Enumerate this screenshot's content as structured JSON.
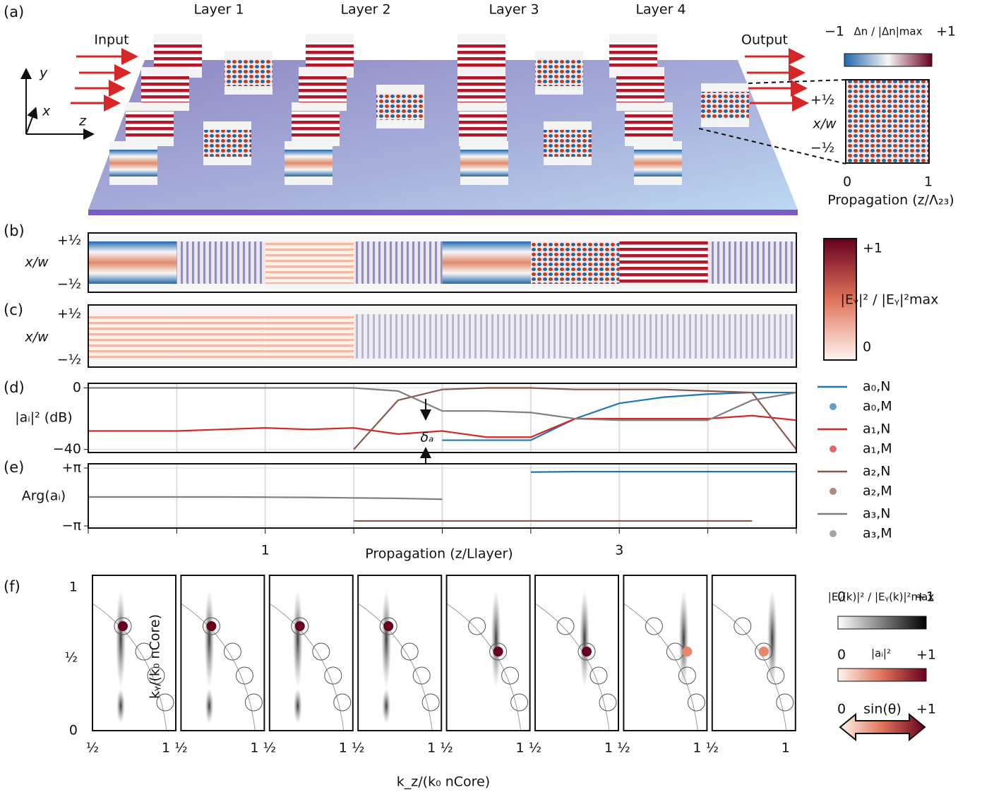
{
  "panel_labels": [
    "(a)",
    "(b)",
    "(c)",
    "(d)",
    "(e)",
    "(f)"
  ],
  "panel_a": {
    "layers": [
      "Layer 1",
      "Layer 2",
      "Layer 3",
      "Layer 4"
    ],
    "input": "Input",
    "output": "Output",
    "axes": [
      "y",
      "x",
      "z"
    ],
    "colorbar": {
      "min": "−1",
      "label": "Δn / |Δn|max",
      "max": "+1"
    },
    "inset": {
      "yticks": [
        "+½",
        "−½"
      ],
      "ylabel": "x/w",
      "xticks": [
        "0",
        "1"
      ],
      "xlabel": "Propagation (z/Λ₂₃)"
    }
  },
  "panel_b": {
    "ylabel": "x/w",
    "yticks": [
      "+½",
      "−½"
    ]
  },
  "panel_c": {
    "ylabel": "x/w",
    "yticks": [
      "+½",
      "−½"
    ]
  },
  "colorbar_field": {
    "max": "+1",
    "label": "|Eᵧ|² / |Eᵧ|²max",
    "min": "0"
  },
  "annotation": "δₐ",
  "chart_data": [
    {
      "type": "line",
      "ylabel": "|aᵢ|² (dB)",
      "x": [
        0,
        0.25,
        0.5,
        0.75,
        1,
        1.25,
        1.5,
        1.75,
        2,
        2.25,
        2.5,
        2.75,
        3,
        3.25,
        3.5,
        3.75,
        4
      ],
      "xlim": [
        0,
        4
      ],
      "ylim": [
        -42,
        3
      ],
      "yticks": [
        0,
        {
          "value": -40,
          "label": "−40"
        }
      ],
      "grid": true,
      "series": [
        {
          "name": "a₀,N",
          "color": "#1f77b4",
          "values": [
            null,
            null,
            null,
            null,
            null,
            null,
            null,
            null,
            -34,
            -34,
            -34,
            -20,
            -10,
            -6,
            -4,
            -3,
            -3
          ]
        },
        {
          "name": "a₁,N",
          "color": "#d62728",
          "values": [
            -28,
            -28,
            -28,
            -27,
            -26,
            -27,
            -26,
            -30,
            -28,
            -32,
            -32,
            -20,
            -20,
            -20,
            -20,
            -18,
            -21
          ]
        },
        {
          "name": "a₂,N",
          "color": "#8c564b",
          "values": [
            null,
            null,
            null,
            null,
            null,
            null,
            -40,
            -8,
            -1,
            0,
            0,
            -1,
            -1,
            -1,
            -2,
            -3,
            -40
          ]
        },
        {
          "name": "a₃,N",
          "color": "#7f7f7f",
          "values": [
            0,
            0,
            0,
            0,
            0,
            0,
            0,
            -2,
            -15,
            -15,
            -16,
            -20,
            -21,
            -21,
            -21,
            -8,
            -3
          ]
        }
      ]
    },
    {
      "type": "line",
      "ylabel": "Arg(aᵢ)",
      "x": [
        0,
        0.25,
        0.5,
        0.75,
        1,
        1.25,
        1.5,
        1.75,
        2,
        2.25,
        2.5,
        2.75,
        3,
        3.25,
        3.5,
        3.75,
        4
      ],
      "xlim": [
        0,
        4
      ],
      "ylim": [
        -3.37,
        3.6
      ],
      "yticks": [
        {
          "value": 3.14159,
          "label": "+π"
        },
        {
          "value": -3.14159,
          "label": "−π"
        }
      ],
      "grid": true,
      "xticks": [
        1,
        3
      ],
      "xlabel": "Propagation (z/Llayer)",
      "series": [
        {
          "color": "#1f77b4",
          "values": [
            null,
            null,
            null,
            null,
            null,
            null,
            null,
            null,
            null,
            null,
            2.7,
            2.75,
            2.75,
            2.75,
            2.75,
            2.75,
            2.75
          ]
        },
        {
          "color": "#8c564b",
          "values": [
            null,
            null,
            null,
            null,
            null,
            null,
            -2.6,
            -2.6,
            -2.6,
            -2.6,
            -2.6,
            -2.6,
            -2.6,
            -2.6,
            -2.6,
            -2.6,
            null
          ]
        },
        {
          "color": "#7f7f7f",
          "values": [
            0,
            0,
            0,
            0,
            -0.02,
            -0.05,
            -0.1,
            -0.15,
            -0.25,
            null,
            null,
            null,
            null,
            null,
            null,
            null,
            null
          ]
        }
      ]
    }
  ],
  "legend_markers": [
    "a₀,M",
    "a₁,M",
    "a₂,M",
    "a₃,M"
  ],
  "panel_f": {
    "ylabel": "kᵧ/(k₀ nCore)",
    "yticks": [
      "1",
      "½",
      "0"
    ],
    "xticks": [
      "½",
      "1"
    ],
    "xlabel": "k_z/(k₀ nCore)",
    "colorbars": [
      {
        "min": "0",
        "label": "|Eᵧ(k)|² / |Eᵧ(k)|²max",
        "max": "+1"
      },
      {
        "min": "0",
        "label": "|aᵢ|²",
        "max": "+1"
      },
      {
        "min": "0",
        "label": "sin(θ)",
        "max": "+1"
      }
    ]
  }
}
